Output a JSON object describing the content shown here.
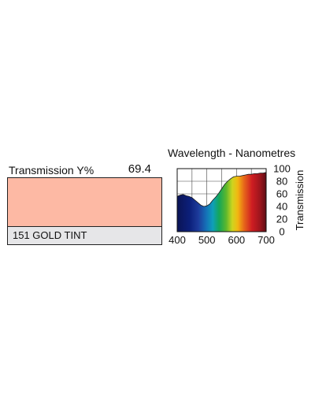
{
  "swatch": {
    "transmission_label": "Transmission Y%",
    "transmission_value": "69.4",
    "color": "#fdb9a4",
    "filter_name": "151 GOLD TINT"
  },
  "chart_data": {
    "type": "area",
    "title": "Wavelength - Nanometres",
    "xlabel": "",
    "ylabel": "Transmission",
    "xlim": [
      400,
      700
    ],
    "ylim": [
      0,
      100
    ],
    "x_ticks": [
      400,
      500,
      600,
      700
    ],
    "y_ticks": [
      0,
      20,
      40,
      60,
      80,
      100
    ],
    "grid": true,
    "fill": "visible-spectrum-gradient",
    "series": [
      {
        "x": [
          400,
          410,
          420,
          430,
          440,
          450,
          460,
          470,
          480,
          490,
          500,
          510,
          520,
          530,
          540,
          550,
          560,
          570,
          580,
          590,
          600,
          610,
          620,
          630,
          640,
          650,
          660,
          670,
          680,
          690,
          700
        ],
        "y": [
          56,
          58,
          59,
          57,
          56,
          54,
          50,
          46,
          42,
          40,
          41,
          44,
          50,
          55,
          61,
          68,
          75,
          80,
          84,
          87,
          88,
          88,
          89,
          90,
          91,
          91,
          92,
          92,
          93,
          93,
          94
        ]
      }
    ]
  }
}
